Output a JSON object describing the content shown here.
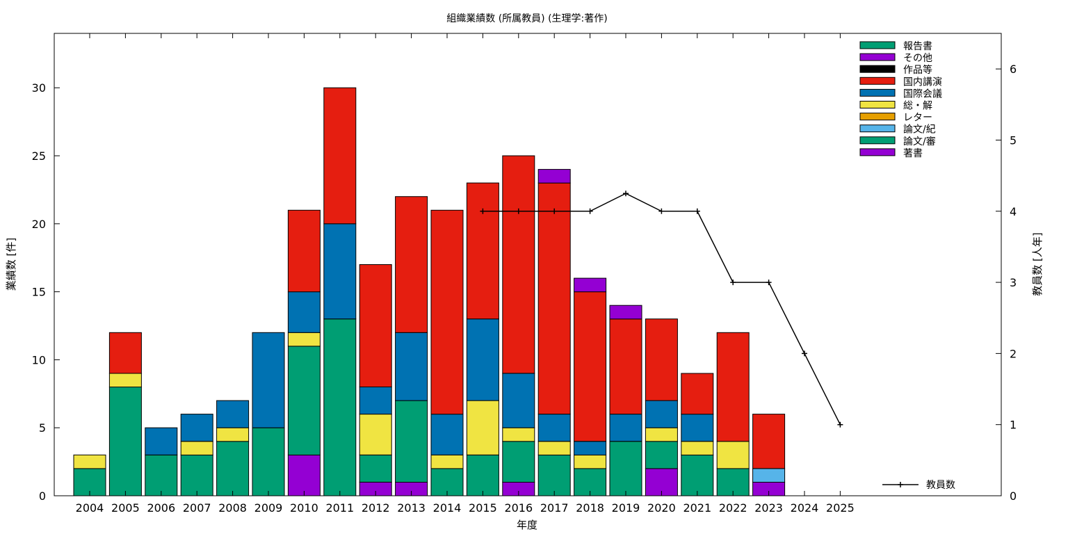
{
  "chart_data": {
    "type": "bar",
    "stacked": true,
    "title": "組織業績数 (所属教員) (生理学:著作)",
    "xlabel": "年度",
    "ylabel": "業績数 [件]",
    "y2label": "教員数 [人年]",
    "ylim": [
      0,
      34
    ],
    "y2lim": [
      0,
      6.5
    ],
    "yticks": [
      0,
      5,
      10,
      15,
      20,
      25,
      30
    ],
    "y2ticks": [
      0,
      1,
      2,
      3,
      4,
      5,
      6
    ],
    "categories": [
      "2004",
      "2005",
      "2006",
      "2007",
      "2008",
      "2009",
      "2010",
      "2011",
      "2012",
      "2013",
      "2014",
      "2015",
      "2016",
      "2017",
      "2018",
      "2019",
      "2020",
      "2021",
      "2022",
      "2023",
      "2024",
      "2025"
    ],
    "series": [
      {
        "name": "著書",
        "color": "#9400d3",
        "values": [
          0,
          0,
          0,
          0,
          0,
          0,
          3,
          0,
          1,
          1,
          0,
          0,
          1,
          0,
          0,
          0,
          2,
          0,
          0,
          1,
          0,
          0
        ]
      },
      {
        "name": "論文/審",
        "color": "#009e73",
        "values": [
          2,
          8,
          3,
          3,
          4,
          5,
          8,
          13,
          2,
          6,
          2,
          3,
          3,
          3,
          2,
          4,
          2,
          3,
          2,
          0,
          0,
          0
        ]
      },
      {
        "name": "論文/紀",
        "color": "#56b4e9",
        "values": [
          0,
          0,
          0,
          0,
          0,
          0,
          0,
          0,
          0,
          0,
          0,
          0,
          0,
          0,
          0,
          0,
          0,
          0,
          0,
          1,
          0,
          0
        ]
      },
      {
        "name": "レター",
        "color": "#e69f00",
        "values": [
          0,
          0,
          0,
          0,
          0,
          0,
          0,
          0,
          0,
          0,
          0,
          0,
          0,
          0,
          0,
          0,
          0,
          0,
          0,
          0,
          0,
          0
        ]
      },
      {
        "name": "総・解",
        "color": "#f0e442",
        "values": [
          1,
          1,
          0,
          1,
          1,
          0,
          1,
          0,
          3,
          0,
          1,
          4,
          1,
          1,
          1,
          0,
          1,
          1,
          2,
          0,
          0,
          0
        ]
      },
      {
        "name": "国際会議",
        "color": "#0072b2",
        "values": [
          0,
          0,
          2,
          2,
          2,
          7,
          3,
          7,
          2,
          5,
          3,
          6,
          4,
          2,
          1,
          2,
          2,
          2,
          0,
          0,
          0,
          0
        ]
      },
      {
        "name": "国内講演",
        "color": "#e51e10",
        "values": [
          0,
          3,
          0,
          0,
          0,
          0,
          6,
          10,
          9,
          10,
          15,
          10,
          16,
          17,
          11,
          7,
          6,
          3,
          8,
          4,
          0,
          0
        ]
      },
      {
        "name": "作品等",
        "color": "#000000",
        "values": [
          0,
          0,
          0,
          0,
          0,
          0,
          0,
          0,
          0,
          0,
          0,
          0,
          0,
          0,
          0,
          0,
          0,
          0,
          0,
          0,
          0,
          0
        ]
      },
      {
        "name": "その他",
        "color": "#9400d3",
        "values": [
          0,
          0,
          0,
          0,
          0,
          0,
          0,
          0,
          0,
          0,
          0,
          0,
          0,
          1,
          1,
          1,
          0,
          0,
          0,
          0,
          0,
          0
        ]
      },
      {
        "name": "報告書",
        "color": "#009e73",
        "values": [
          0,
          0,
          0,
          0,
          0,
          0,
          0,
          0,
          0,
          0,
          0,
          0,
          0,
          0,
          0,
          0,
          0,
          0,
          0,
          0,
          0,
          0
        ]
      }
    ],
    "line": {
      "name": "教員数",
      "color": "#000000",
      "axis": "right",
      "x": [
        "2015",
        "2016",
        "2017",
        "2018",
        "2019",
        "2020",
        "2021",
        "2022",
        "2023",
        "2024",
        "2025"
      ],
      "values": [
        4,
        4,
        4,
        4,
        4.25,
        4,
        4,
        3,
        3,
        2,
        1
      ]
    },
    "legend_placement": "top-right",
    "line_legend_placement": "bottom-right",
    "grid": false
  }
}
